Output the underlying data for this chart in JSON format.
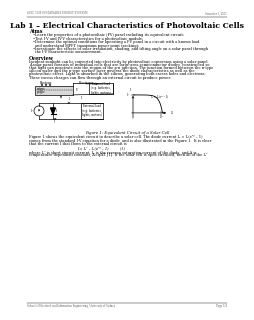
{
  "title": "Lab 1 – Electrical Characteristics of Photovoltaic Cells",
  "header_left": "ELEC 5508 SUSTAINABLE ENERGY SYSTEMS",
  "header_right": "Semester 1, 2011",
  "footer_left": "School of Electrical and Information Engineering, University of Sydney",
  "footer_right": "Page 1/4",
  "aims_title": "Aims",
  "aims_bullets": [
    "Learn the properties of a photovoltaic (PV) panel including its equivalent circuit;",
    "Test I-V and IV-V characteristics for a photovoltaic module;",
    "Determine the optimal conditions for operating a PV panel in a circuit with a known load\nand understand MPPT (maximum power point tracking);",
    "Investigate the effects of solar irradiation, shading, and tilting angle on a solar panel through\nthe I-V characteristic measurement."
  ],
  "overview_title": "Overview",
  "overview_lines": [
    "Incident sunlight can be converted into electricity by photovoltaic conversion using a solar panel.",
    "A solar panel consists of individual cells that are large-area semiconductor diodes, constructed so",
    "that light can penetrate into the region of the p-n junction. The junction formed between the n-type",
    "silicon wafer and the p-type surface layer governs the diode characteristics as well as the",
    "photovoltaic effect. Light is absorbed in the silicon, generating both excess holes and electrons.",
    "These excess charges can flow through an external circuit to produce power."
  ],
  "figure_caption": "Figure 1: Equivalent Circuit of a Solar Cell",
  "figure_text_lines": [
    "Figure 1 shows the equivalent circuit to describe a solar cell. The diode current Iₑ = I₀(eᵛᵞ – 1)",
    "comes from the standard I-V equation for a diode, and is also illustrated in the Figure 1.  It is clear",
    "that the current I that flows to the external circuit is"
  ],
  "equation": "I = Iₛᶜ – I₀(eᵛᵞ – 1)          (1)",
  "final_text_lines": [
    "where Iₛᶜ is short circuit current, I₀ is the reverse saturation current of the diode, and A is",
    "temperature-dependent constant, A=q/kT [1]. If the solar cell is open circuited, then all of the Iₛᶜ"
  ],
  "bg_color": "#ffffff",
  "text_color": "#000000"
}
